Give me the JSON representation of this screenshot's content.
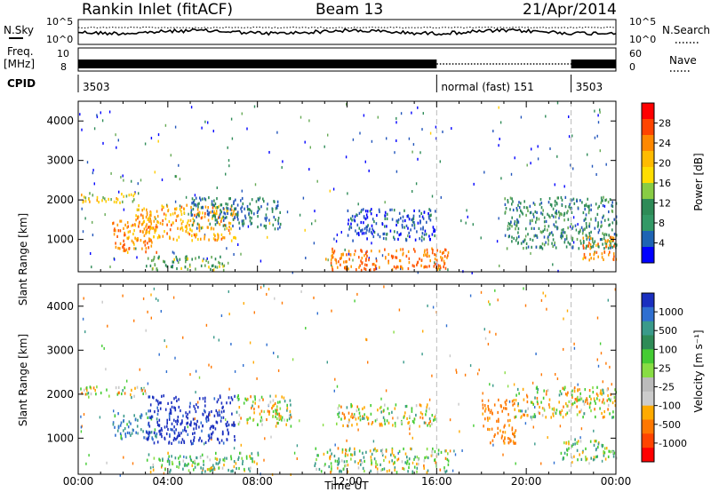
{
  "header": {
    "title": "Rankin Inlet (fitACF)",
    "beam": "Beam 13",
    "date": "21/Apr/2014"
  },
  "summary": {
    "nsky_label": "N.Sky",
    "nsearch_label": "N.Search",
    "noise_ticks": [
      "10^5",
      "10^0"
    ],
    "freq_label_1": "Freq.",
    "freq_label_2": "[MHz]",
    "freq_ticks": [
      "10",
      "8"
    ],
    "nave_label": "Nave",
    "nave_ticks": [
      "60",
      "0"
    ],
    "cpid_label": "CPID",
    "cpid_segments": [
      {
        "text": "3503",
        "start_hr": 0,
        "end_hr": 16
      },
      {
        "text": "normal (fast) 151",
        "start_hr": 16,
        "end_hr": 22
      },
      {
        "text": "3503",
        "start_hr": 22,
        "end_hr": 24
      }
    ]
  },
  "axes": {
    "ylabel": "Slant Range [km]",
    "xlabel": "Time UT",
    "x_ticks": [
      "00:00",
      "04:00",
      "08:00",
      "12:00",
      "16:00",
      "20:00",
      "00:00"
    ],
    "y_ticks": [
      "1000",
      "2000",
      "3000",
      "4000"
    ]
  },
  "power_colorbar": {
    "label": "Power [dB]",
    "ticks": [
      "28",
      "24",
      "20",
      "16",
      "12",
      "8",
      "4"
    ],
    "colors": [
      "#ff0000",
      "#ff4400",
      "#ff8800",
      "#ffbb00",
      "#ffdd00",
      "#88cc44",
      "#2e8b57",
      "#339966",
      "#1e64b4",
      "#0000ff"
    ]
  },
  "velocity_colorbar": {
    "label": "Velocity [m s⁻¹]",
    "ticks": [
      "1000",
      "500",
      "100",
      "25",
      "-25",
      "-100",
      "-500",
      "-1000"
    ],
    "colors": [
      "#1a2fbf",
      "#2f6fd0",
      "#3a9a8a",
      "#2e8b57",
      "#44cc33",
      "#88dd44",
      "#bbbbbb",
      "#cccccc",
      "#ffaa00",
      "#ff7700",
      "#ff4400",
      "#ff0000"
    ]
  },
  "chart_data": [
    {
      "type": "heatmap",
      "title": "Power",
      "xlabel": "Time UT",
      "ylabel": "Slant Range [km]",
      "xlim": [
        0,
        24
      ],
      "ylim": [
        180,
        4500
      ],
      "colorbar_label": "Power [dB]",
      "colorbar_range": [
        0,
        30
      ],
      "patches": [
        {
          "t0": 0.0,
          "t1": 2.5,
          "r0": 1950,
          "r1": 2200,
          "value": 18
        },
        {
          "t0": 1.5,
          "t1": 3.5,
          "r0": 700,
          "r1": 1500,
          "value": 24
        },
        {
          "t0": 2.5,
          "t1": 7.0,
          "r0": 1000,
          "r1": 1900,
          "value": 22
        },
        {
          "t0": 3.0,
          "t1": 6.5,
          "r0": 250,
          "r1": 600,
          "value": 14
        },
        {
          "t0": 5.0,
          "t1": 9.0,
          "r0": 1300,
          "r1": 2100,
          "value": 10
        },
        {
          "t0": 11.0,
          "t1": 16.5,
          "r0": 250,
          "r1": 800,
          "value": 26
        },
        {
          "t0": 12.0,
          "t1": 16.0,
          "r0": 1000,
          "r1": 1800,
          "value": 8
        },
        {
          "t0": 19.0,
          "t1": 24.0,
          "r0": 800,
          "r1": 2100,
          "value": 12
        },
        {
          "t0": 22.5,
          "t1": 24.0,
          "r0": 500,
          "r1": 1100,
          "value": 24
        }
      ]
    },
    {
      "type": "heatmap",
      "title": "Velocity",
      "xlabel": "Time UT",
      "ylabel": "Slant Range [km]",
      "xlim": [
        0,
        24
      ],
      "ylim": [
        180,
        4500
      ],
      "colorbar_label": "Velocity [m s⁻¹]",
      "colorbar_range": [
        -1000,
        1000
      ],
      "patches": [
        {
          "t0": 0.0,
          "t1": 3.0,
          "r0": 1950,
          "r1": 2200,
          "value": 0
        },
        {
          "t0": 1.5,
          "t1": 3.5,
          "r0": 1000,
          "r1": 1600,
          "value": 400
        },
        {
          "t0": 3.0,
          "t1": 7.0,
          "r0": 900,
          "r1": 2000,
          "value": 900
        },
        {
          "t0": 3.0,
          "t1": 8.0,
          "r0": 250,
          "r1": 700,
          "value": 120
        },
        {
          "t0": 7.0,
          "t1": 9.5,
          "r0": 1300,
          "r1": 2000,
          "value": 0
        },
        {
          "t0": 10.5,
          "t1": 16.5,
          "r0": 250,
          "r1": 800,
          "value": 80
        },
        {
          "t0": 11.5,
          "t1": 16.0,
          "r0": 1300,
          "r1": 1800,
          "value": 0
        },
        {
          "t0": 18.0,
          "t1": 19.5,
          "r0": 900,
          "r1": 1900,
          "value": -300
        },
        {
          "t0": 19.5,
          "t1": 24.0,
          "r0": 1500,
          "r1": 2200,
          "value": 0
        },
        {
          "t0": 21.5,
          "t1": 24.0,
          "r0": 500,
          "r1": 1000,
          "value": 120
        }
      ]
    }
  ]
}
